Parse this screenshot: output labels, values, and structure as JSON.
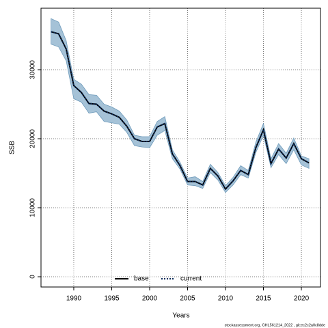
{
  "chart_data": {
    "type": "line",
    "x_label": "Years",
    "y_label": "SSB",
    "footer": "stockassessment.org, GHL561214_2022 , git:ec2c2a0c8dde",
    "x": [
      1987,
      1988,
      1989,
      1990,
      1991,
      1992,
      1993,
      1994,
      1995,
      1996,
      1997,
      1998,
      1999,
      2000,
      2001,
      2002,
      2003,
      2004,
      2005,
      2006,
      2007,
      2008,
      2009,
      2010,
      2011,
      2012,
      2013,
      2014,
      2015,
      2016,
      2017,
      2018,
      2019,
      2020,
      2021
    ],
    "xlim": [
      1985.68,
      2022.52
    ],
    "xticks": [
      1990,
      1995,
      2000,
      2005,
      2010,
      2015,
      2020
    ],
    "ylim": [
      -1485,
      38911
    ],
    "yticks": [
      0,
      10000,
      20000,
      30000
    ],
    "grid": true,
    "band_color": "#a5c2d7",
    "band_edge": "#6f9bbb",
    "series": [
      {
        "name": "base",
        "color": "#000000",
        "style": "solid",
        "values": [
          35500,
          35200,
          33000,
          27700,
          26700,
          25100,
          25000,
          24000,
          23600,
          23100,
          21800,
          20000,
          19600,
          19600,
          21700,
          22200,
          17800,
          16100,
          13800,
          13800,
          13300,
          15700,
          14600,
          12700,
          13900,
          15400,
          14800,
          18700,
          21300,
          16400,
          18500,
          17200,
          19300,
          17100,
          16500
        ]
      },
      {
        "name": "current",
        "color": "#0b2b5a",
        "style": "dotted",
        "values": [
          35500,
          35200,
          33000,
          27700,
          26700,
          25100,
          25000,
          24000,
          23600,
          23100,
          21800,
          20000,
          19600,
          19600,
          21700,
          22200,
          17800,
          16100,
          13800,
          13800,
          13300,
          15700,
          14600,
          12700,
          13900,
          15400,
          14800,
          18700,
          21300,
          16400,
          18500,
          17200,
          19300,
          17100,
          16500
        ],
        "upper": [
          37400,
          36900,
          34200,
          28600,
          27900,
          26400,
          26300,
          25000,
          24600,
          24000,
          22700,
          20500,
          20300,
          20300,
          22500,
          23200,
          18400,
          16600,
          14300,
          14500,
          13800,
          16300,
          15100,
          13200,
          14400,
          16100,
          15400,
          19500,
          22200,
          17100,
          19300,
          17900,
          20100,
          17500,
          17100
        ],
        "lower": [
          33700,
          33300,
          31300,
          25800,
          25300,
          23700,
          23900,
          22500,
          22300,
          22100,
          20900,
          19000,
          18800,
          18700,
          20500,
          21200,
          17100,
          15600,
          13300,
          13200,
          12800,
          15100,
          14000,
          12200,
          13300,
          14800,
          14300,
          18000,
          20500,
          15800,
          17700,
          16400,
          18400,
          16200,
          15700
        ]
      }
    ]
  }
}
